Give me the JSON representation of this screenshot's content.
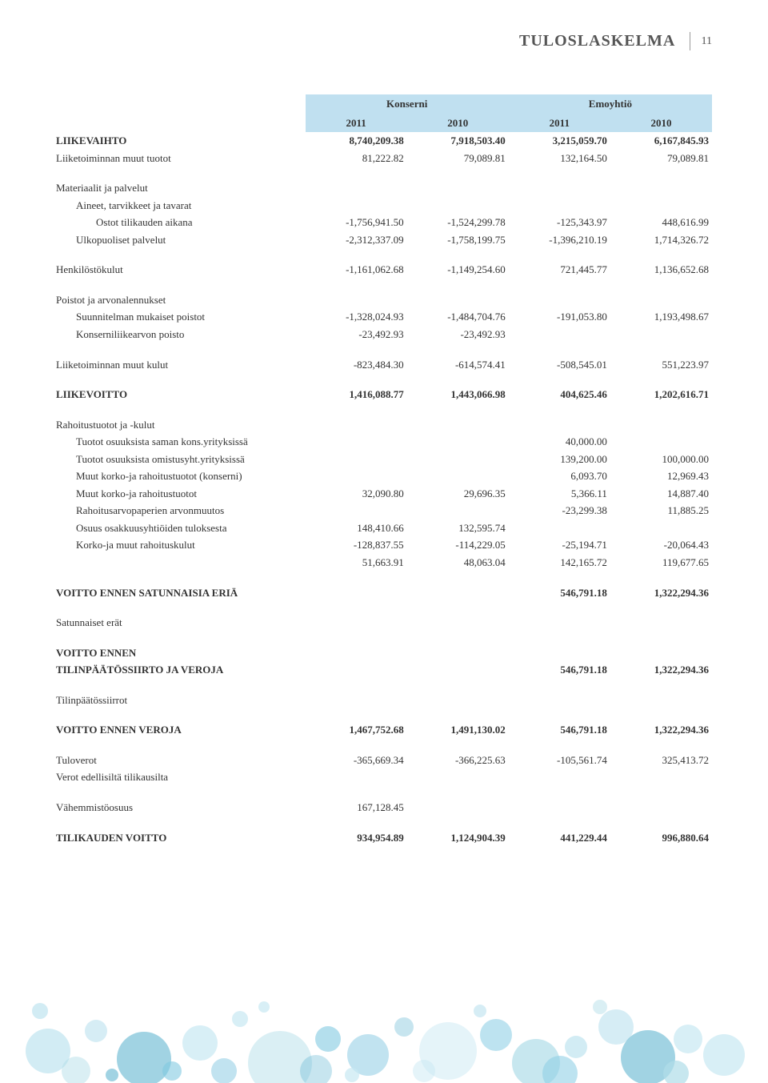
{
  "header": {
    "title": "TULOSLASKELMA",
    "page": "11"
  },
  "colors": {
    "header_bg": "#c0e0f0",
    "text": "#333333",
    "title": "#555555"
  },
  "group_headers": [
    "Konserni",
    "",
    "Emoyhtiö",
    ""
  ],
  "year_headers": [
    "2011",
    "2010",
    "2011",
    "2010"
  ],
  "rows": [
    {
      "label": "LIIKEVAIHTO",
      "bold": true,
      "indent": 0,
      "values": [
        "8,740,209.38",
        "7,918,503.40",
        "3,215,059.70",
        "6,167,845.93"
      ]
    },
    {
      "label": "Liiketoiminnan muut tuotot",
      "indent": 0,
      "values": [
        "81,222.82",
        "79,089.81",
        "132,164.50",
        "79,089.81"
      ]
    },
    {
      "spacer": true
    },
    {
      "label": "Materiaalit ja palvelut",
      "indent": 0,
      "values": [
        "",
        "",
        "",
        ""
      ]
    },
    {
      "label": "Aineet, tarvikkeet ja tavarat",
      "indent": 1,
      "values": [
        "",
        "",
        "",
        ""
      ]
    },
    {
      "label": "Ostot tilikauden aikana",
      "indent": 2,
      "values": [
        "-1,756,941.50",
        "-1,524,299.78",
        "-125,343.97",
        "448,616.99"
      ]
    },
    {
      "label": "Ulkopuoliset palvelut",
      "indent": 1,
      "values": [
        "-2,312,337.09",
        "-1,758,199.75",
        "-1,396,210.19",
        "1,714,326.72"
      ]
    },
    {
      "spacer": true
    },
    {
      "label": "Henkilöstökulut",
      "indent": 0,
      "values": [
        "-1,161,062.68",
        "-1,149,254.60",
        "721,445.77",
        "1,136,652.68"
      ]
    },
    {
      "spacer": true
    },
    {
      "label": "Poistot ja arvonalennukset",
      "indent": 0,
      "values": [
        "",
        "",
        "",
        ""
      ]
    },
    {
      "label": "Suunnitelman mukaiset poistot",
      "indent": 1,
      "values": [
        "-1,328,024.93",
        "-1,484,704.76",
        "-191,053.80",
        "1,193,498.67"
      ]
    },
    {
      "label": "Konserniliikearvon poisto",
      "indent": 1,
      "values": [
        "-23,492.93",
        "-23,492.93",
        "",
        ""
      ]
    },
    {
      "spacer": true
    },
    {
      "label": "Liiketoiminnan muut kulut",
      "indent": 0,
      "values": [
        "-823,484.30",
        "-614,574.41",
        "-508,545.01",
        "551,223.97"
      ]
    },
    {
      "spacer": true
    },
    {
      "label": "LIIKEVOITTO",
      "bold": true,
      "indent": 0,
      "values": [
        "1,416,088.77",
        "1,443,066.98",
        "404,625.46",
        "1,202,616.71"
      ]
    },
    {
      "spacer": true
    },
    {
      "label": "Rahoitustuotot ja -kulut",
      "indent": 0,
      "values": [
        "",
        "",
        "",
        ""
      ]
    },
    {
      "label": "Tuotot osuuksista saman kons.yrityksissä",
      "indent": 1,
      "values": [
        "",
        "",
        "40,000.00",
        ""
      ]
    },
    {
      "label": "Tuotot osuuksista omistusyht.yrityksissä",
      "indent": 1,
      "values": [
        "",
        "",
        "139,200.00",
        "100,000.00"
      ]
    },
    {
      "label": "Muut korko-ja rahoitustuotot (konserni)",
      "indent": 1,
      "values": [
        "",
        "",
        "6,093.70",
        "12,969.43"
      ]
    },
    {
      "label": "Muut korko-ja rahoitustuotot",
      "indent": 1,
      "values": [
        "32,090.80",
        "29,696.35",
        "5,366.11",
        "14,887.40"
      ]
    },
    {
      "label": "Rahoitusarvopaperien arvonmuutos",
      "indent": 1,
      "values": [
        "",
        "",
        "-23,299.38",
        "11,885.25"
      ]
    },
    {
      "label": "Osuus osakkuusyhtiöiden tuloksesta",
      "indent": 1,
      "values": [
        "148,410.66",
        "132,595.74",
        "",
        ""
      ]
    },
    {
      "label": "Korko-ja muut rahoituskulut",
      "indent": 1,
      "values": [
        "-128,837.55",
        "-114,229.05",
        "-25,194.71",
        "-20,064.43"
      ]
    },
    {
      "label": "",
      "indent": 1,
      "values": [
        "51,663.91",
        "48,063.04",
        "142,165.72",
        "119,677.65"
      ]
    },
    {
      "spacer": true
    },
    {
      "label": "VOITTO ENNEN SATUNNAISIA ERIÄ",
      "bold": true,
      "indent": 0,
      "values": [
        "",
        "",
        "546,791.18",
        "1,322,294.36"
      ]
    },
    {
      "spacer": true
    },
    {
      "label": "Satunnaiset erät",
      "indent": 0,
      "values": [
        "",
        "",
        "",
        ""
      ]
    },
    {
      "spacer": true
    },
    {
      "label": "VOITTO ENNEN",
      "bold": true,
      "indent": 0,
      "values": [
        "",
        "",
        "",
        ""
      ]
    },
    {
      "label": "TILINPÄÄTÖSSIIRTO JA VEROJA",
      "bold": true,
      "indent": 0,
      "values": [
        "",
        "",
        "546,791.18",
        "1,322,294.36"
      ]
    },
    {
      "spacer": true
    },
    {
      "label": "Tilinpäätössiirrot",
      "indent": 0,
      "values": [
        "",
        "",
        "",
        ""
      ]
    },
    {
      "spacer": true
    },
    {
      "label": "VOITTO ENNEN VEROJA",
      "bold": true,
      "indent": 0,
      "values": [
        "1,467,752.68",
        "1,491,130.02",
        "546,791.18",
        "1,322,294.36"
      ]
    },
    {
      "spacer": true
    },
    {
      "label": "Tuloverot",
      "indent": 0,
      "values": [
        "-365,669.34",
        "-366,225.63",
        "-105,561.74",
        "325,413.72"
      ]
    },
    {
      "label": "Verot edellisiltä tilikausilta",
      "indent": 0,
      "values": [
        "",
        "",
        "",
        ""
      ]
    },
    {
      "spacer": true
    },
    {
      "label": "Vähemmistöosuus",
      "indent": 0,
      "values": [
        "167,128.45",
        "",
        "",
        ""
      ]
    },
    {
      "spacer": true
    },
    {
      "label": "TILIKAUDEN VOITTO",
      "bold": true,
      "indent": 0,
      "values": [
        "934,954.89",
        "1,124,904.39",
        "441,229.44",
        "996,880.64"
      ]
    }
  ],
  "bubbles": {
    "colors": [
      "#7fc8e0",
      "#a8d8ea",
      "#5fb5d0",
      "#c8e8f2",
      "#8fd0e5",
      "#b0dde8"
    ],
    "count": 45
  }
}
